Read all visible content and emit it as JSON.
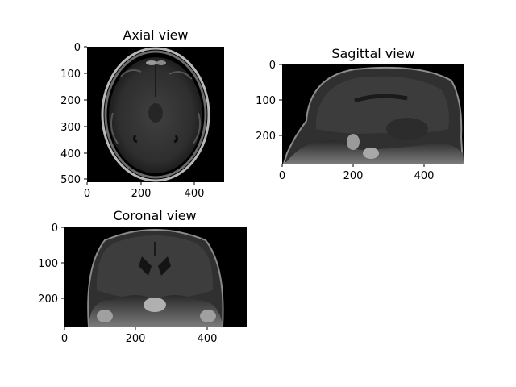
{
  "panels": [
    {
      "title": "Axial view",
      "x_ticks": [
        "0",
        "200",
        "400"
      ],
      "y_ticks": [
        "0",
        "100",
        "200",
        "300",
        "400",
        "500"
      ],
      "x_range": [
        0,
        511
      ],
      "y_range": [
        0,
        511
      ],
      "description": "axial MRI slice of a brain"
    },
    {
      "title": "Sagittal view",
      "x_ticks": [
        "0",
        "200",
        "400"
      ],
      "y_ticks": [
        "0",
        "100",
        "200"
      ],
      "x_range": [
        0,
        511
      ],
      "y_range": [
        0,
        280
      ],
      "description": "sagittal MRI slice of a head"
    },
    {
      "title": "Coronal view",
      "x_ticks": [
        "0",
        "200",
        "400"
      ],
      "y_ticks": [
        "0",
        "100",
        "200"
      ],
      "x_range": [
        0,
        511
      ],
      "y_range": [
        0,
        280
      ],
      "description": "coronal MRI slice of a head"
    }
  ],
  "colors": {
    "background": "#000000",
    "tissue": "#3a3a3a",
    "bright": "#cfcfcf"
  }
}
